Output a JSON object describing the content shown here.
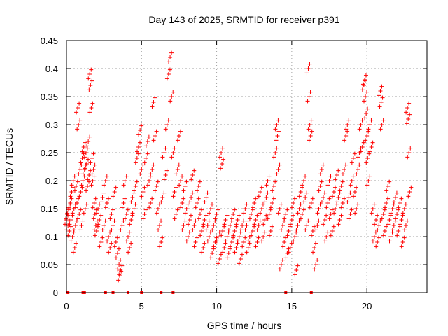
{
  "chart_data": {
    "type": "scatter",
    "title": "Day 143 of 2025, SRMTID for receiver p391",
    "xlabel": "GPS time / hours",
    "ylabel": "SRMTID / TECUs",
    "xlim": [
      0,
      24
    ],
    "ylim": [
      0,
      0.45
    ],
    "x_ticks": [
      0,
      5,
      10,
      15,
      20
    ],
    "x_tick_labels": [
      "0",
      "5",
      "10",
      "15",
      "20"
    ],
    "y_ticks": [
      0,
      0.05,
      0.1,
      0.15,
      0.2,
      0.25,
      0.3,
      0.35,
      0.4,
      0.45
    ],
    "y_tick_labels": [
      "0",
      "0.05",
      "0.1",
      "0.15",
      "0.2",
      "0.25",
      "0.3",
      "0.35",
      "0.4",
      "0.45"
    ],
    "grid": true,
    "marker": "plus",
    "color": "#ff0000",
    "zero_markers_x": [
      0.1,
      1.1,
      1.2,
      2.6,
      3.1,
      4.1,
      5.0,
      6.3,
      7.1,
      14.6,
      16.3
    ],
    "series": [
      {
        "name": "SRMTID",
        "points": [
          [
            0.0,
            0.13
          ],
          [
            0.05,
            0.14
          ],
          [
            0.1,
            0.12
          ],
          [
            0.15,
            0.15
          ],
          [
            0.2,
            0.11
          ],
          [
            0.25,
            0.16
          ],
          [
            0.3,
            0.13
          ],
          [
            0.35,
            0.18
          ],
          [
            0.4,
            0.1
          ],
          [
            0.45,
            0.2
          ],
          [
            0.5,
            0.15
          ],
          [
            0.55,
            0.08
          ],
          [
            0.6,
            0.12
          ],
          [
            0.65,
            0.19
          ],
          [
            0.7,
            0.16
          ],
          [
            0.75,
            0.33
          ],
          [
            0.8,
            0.3
          ],
          [
            0.85,
            0.14
          ],
          [
            0.9,
            0.22
          ],
          [
            0.95,
            0.18
          ],
          [
            1.0,
            0.12
          ],
          [
            1.05,
            0.24
          ],
          [
            1.1,
            0.2
          ],
          [
            1.15,
            0.26
          ],
          [
            1.2,
            0.22
          ],
          [
            1.25,
            0.15
          ],
          [
            1.3,
            0.25
          ],
          [
            1.35,
            0.23
          ],
          [
            1.4,
            0.19
          ],
          [
            1.45,
            0.27
          ],
          [
            1.5,
            0.21
          ],
          [
            1.55,
            0.39
          ],
          [
            1.6,
            0.37
          ],
          [
            1.65,
            0.33
          ],
          [
            1.7,
            0.24
          ],
          [
            1.75,
            0.2
          ],
          [
            1.8,
            0.22
          ],
          [
            1.85,
            0.16
          ],
          [
            1.9,
            0.14
          ],
          [
            1.95,
            0.12
          ],
          [
            2.0,
            0.11
          ],
          [
            2.1,
            0.15
          ],
          [
            2.2,
            0.13
          ],
          [
            2.3,
            0.09
          ],
          [
            2.4,
            0.17
          ],
          [
            2.5,
            0.12
          ],
          [
            2.6,
            0.2
          ],
          [
            2.7,
            0.16
          ],
          [
            2.8,
            0.1
          ],
          [
            2.9,
            0.08
          ],
          [
            3.0,
            0.14
          ],
          [
            3.1,
            0.12
          ],
          [
            3.2,
            0.18
          ],
          [
            3.3,
            0.09
          ],
          [
            3.4,
            0.07
          ],
          [
            3.5,
            0.05
          ],
          [
            3.55,
            0.03
          ],
          [
            3.6,
            0.04
          ],
          [
            3.7,
            0.12
          ],
          [
            3.8,
            0.16
          ],
          [
            3.9,
            0.2
          ],
          [
            4.0,
            0.14
          ],
          [
            4.1,
            0.1
          ],
          [
            4.2,
            0.08
          ],
          [
            4.3,
            0.13
          ],
          [
            4.4,
            0.17
          ],
          [
            4.5,
            0.15
          ],
          [
            4.6,
            0.19
          ],
          [
            4.7,
            0.24
          ],
          [
            4.8,
            0.26
          ],
          [
            4.9,
            0.29
          ],
          [
            5.0,
            0.22
          ],
          [
            5.1,
            0.18
          ],
          [
            5.2,
            0.14
          ],
          [
            5.3,
            0.24
          ],
          [
            5.4,
            0.27
          ],
          [
            5.5,
            0.2
          ],
          [
            5.6,
            0.16
          ],
          [
            5.7,
            0.22
          ],
          [
            5.8,
            0.34
          ],
          [
            5.9,
            0.28
          ],
          [
            6.0,
            0.19
          ],
          [
            6.1,
            0.15
          ],
          [
            6.2,
            0.12
          ],
          [
            6.3,
            0.09
          ],
          [
            6.4,
            0.17
          ],
          [
            6.5,
            0.25
          ],
          [
            6.6,
            0.21
          ],
          [
            6.7,
            0.3
          ],
          [
            6.8,
            0.39
          ],
          [
            6.9,
            0.42
          ],
          [
            7.0,
            0.35
          ],
          [
            7.1,
            0.25
          ],
          [
            7.2,
            0.18
          ],
          [
            7.3,
            0.14
          ],
          [
            7.4,
            0.22
          ],
          [
            7.5,
            0.28
          ],
          [
            7.6,
            0.2
          ],
          [
            7.7,
            0.16
          ],
          [
            7.8,
            0.12
          ],
          [
            7.9,
            0.19
          ],
          [
            8.0,
            0.15
          ],
          [
            8.1,
            0.1
          ],
          [
            8.2,
            0.13
          ],
          [
            8.3,
            0.17
          ],
          [
            8.4,
            0.21
          ],
          [
            8.5,
            0.12
          ],
          [
            8.6,
            0.09
          ],
          [
            8.7,
            0.16
          ],
          [
            8.8,
            0.19
          ],
          [
            8.9,
            0.14
          ],
          [
            9.0,
            0.11
          ],
          [
            9.1,
            0.08
          ],
          [
            9.2,
            0.13
          ],
          [
            9.3,
            0.17
          ],
          [
            9.4,
            0.12
          ],
          [
            9.5,
            0.1
          ],
          [
            9.6,
            0.15
          ],
          [
            9.7,
            0.07
          ],
          [
            9.8,
            0.12
          ],
          [
            9.9,
            0.09
          ],
          [
            10.0,
            0.14
          ],
          [
            10.1,
            0.1
          ],
          [
            10.2,
            0.06
          ],
          [
            10.3,
            0.25
          ],
          [
            10.35,
            0.23
          ],
          [
            10.4,
            0.11
          ],
          [
            10.5,
            0.08
          ],
          [
            10.6,
            0.13
          ],
          [
            10.7,
            0.1
          ],
          [
            10.8,
            0.07
          ],
          [
            10.9,
            0.12
          ],
          [
            11.0,
            0.09
          ],
          [
            11.1,
            0.14
          ],
          [
            11.2,
            0.11
          ],
          [
            11.3,
            0.08
          ],
          [
            11.4,
            0.13
          ],
          [
            11.5,
            0.1
          ],
          [
            11.6,
            0.06
          ],
          [
            11.7,
            0.12
          ],
          [
            11.8,
            0.09
          ],
          [
            11.9,
            0.15
          ],
          [
            12.0,
            0.12
          ],
          [
            12.1,
            0.08
          ],
          [
            12.2,
            0.1
          ],
          [
            12.3,
            0.14
          ],
          [
            12.4,
            0.11
          ],
          [
            12.5,
            0.16
          ],
          [
            12.6,
            0.13
          ],
          [
            12.7,
            0.09
          ],
          [
            12.8,
            0.12
          ],
          [
            12.9,
            0.18
          ],
          [
            13.0,
            0.15
          ],
          [
            13.1,
            0.1
          ],
          [
            13.2,
            0.13
          ],
          [
            13.3,
            0.17
          ],
          [
            13.4,
            0.2
          ],
          [
            13.5,
            0.14
          ],
          [
            13.6,
            0.11
          ],
          [
            13.7,
            0.16
          ],
          [
            13.8,
            0.19
          ],
          [
            13.9,
            0.25
          ],
          [
            14.0,
            0.3
          ],
          [
            14.05,
            0.28
          ],
          [
            14.1,
            0.22
          ],
          [
            14.2,
            0.15
          ],
          [
            14.3,
            0.05
          ],
          [
            14.4,
            0.12
          ],
          [
            14.5,
            0.09
          ],
          [
            14.6,
            0.14
          ],
          [
            14.7,
            0.07
          ],
          [
            14.8,
            0.11
          ],
          [
            14.9,
            0.08
          ],
          [
            15.0,
            0.13
          ],
          [
            15.1,
            0.16
          ],
          [
            15.2,
            0.1
          ],
          [
            15.3,
            0.04
          ],
          [
            15.4,
            0.12
          ],
          [
            15.5,
            0.15
          ],
          [
            15.6,
            0.18
          ],
          [
            15.7,
            0.14
          ],
          [
            15.8,
            0.2
          ],
          [
            15.9,
            0.17
          ],
          [
            16.0,
            0.12
          ],
          [
            16.1,
            0.4
          ],
          [
            16.15,
            0.35
          ],
          [
            16.2,
            0.3
          ],
          [
            16.25,
            0.28
          ],
          [
            16.3,
            0.16
          ],
          [
            16.4,
            0.11
          ],
          [
            16.5,
            0.08
          ],
          [
            16.6,
            0.05
          ],
          [
            16.7,
            0.12
          ],
          [
            16.8,
            0.15
          ],
          [
            16.9,
            0.19
          ],
          [
            17.0,
            0.22
          ],
          [
            17.1,
            0.17
          ],
          [
            17.2,
            0.13
          ],
          [
            17.3,
            0.1
          ],
          [
            17.4,
            0.16
          ],
          [
            17.5,
            0.2
          ],
          [
            17.6,
            0.14
          ],
          [
            17.7,
            0.11
          ],
          [
            17.8,
            0.18
          ],
          [
            17.9,
            0.15
          ],
          [
            18.0,
            0.21
          ],
          [
            18.1,
            0.17
          ],
          [
            18.2,
            0.13
          ],
          [
            18.3,
            0.19
          ],
          [
            18.4,
            0.16
          ],
          [
            18.5,
            0.22
          ],
          [
            18.6,
            0.28
          ],
          [
            18.7,
            0.3
          ],
          [
            18.8,
            0.17
          ],
          [
            18.9,
            0.14
          ],
          [
            19.0,
            0.2
          ],
          [
            19.1,
            0.24
          ],
          [
            19.2,
            0.18
          ],
          [
            19.3,
            0.15
          ],
          [
            19.4,
            0.22
          ],
          [
            19.5,
            0.25
          ],
          [
            19.6,
            0.3
          ],
          [
            19.7,
            0.26
          ],
          [
            19.8,
            0.37
          ],
          [
            19.85,
            0.38
          ],
          [
            19.9,
            0.35
          ],
          [
            19.95,
            0.32
          ],
          [
            20.0,
            0.28
          ],
          [
            20.05,
            0.24
          ],
          [
            20.1,
            0.2
          ],
          [
            20.2,
            0.3
          ],
          [
            20.3,
            0.26
          ],
          [
            20.4,
            0.15
          ],
          [
            20.5,
            0.1
          ],
          [
            20.6,
            0.13
          ],
          [
            20.7,
            0.09
          ],
          [
            20.8,
            0.12
          ],
          [
            20.9,
            0.36
          ],
          [
            20.95,
            0.34
          ],
          [
            21.0,
            0.3
          ],
          [
            21.1,
            0.14
          ],
          [
            21.2,
            0.11
          ],
          [
            21.3,
            0.16
          ],
          [
            21.4,
            0.19
          ],
          [
            21.5,
            0.13
          ],
          [
            21.6,
            0.1
          ],
          [
            21.7,
            0.15
          ],
          [
            21.8,
            0.12
          ],
          [
            21.9,
            0.17
          ],
          [
            22.0,
            0.14
          ],
          [
            22.1,
            0.11
          ],
          [
            22.2,
            0.16
          ],
          [
            22.3,
            0.13
          ],
          [
            22.4,
            0.09
          ],
          [
            22.5,
            0.15
          ],
          [
            22.6,
            0.12
          ],
          [
            22.7,
            0.33
          ],
          [
            22.75,
            0.31
          ],
          [
            22.8,
            0.25
          ],
          [
            22.85,
            0.18
          ]
        ]
      }
    ]
  }
}
